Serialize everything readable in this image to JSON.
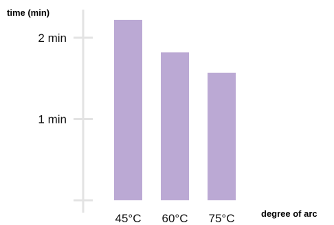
{
  "chart_data": {
    "type": "bar",
    "ylabel": "time (min)",
    "xlabel": "degree of arc",
    "categories": [
      "45°C",
      "60°C",
      "75°C"
    ],
    "values": [
      2.22,
      1.82,
      1.57
    ],
    "y_ticks": [
      {
        "value": 1,
        "label": "1 min"
      },
      {
        "value": 2,
        "label": "2 min"
      }
    ],
    "ylim": [
      0,
      2.45
    ],
    "bar_color": "#bba9d4",
    "axis_color": "#e3e3e3",
    "grid": false
  }
}
